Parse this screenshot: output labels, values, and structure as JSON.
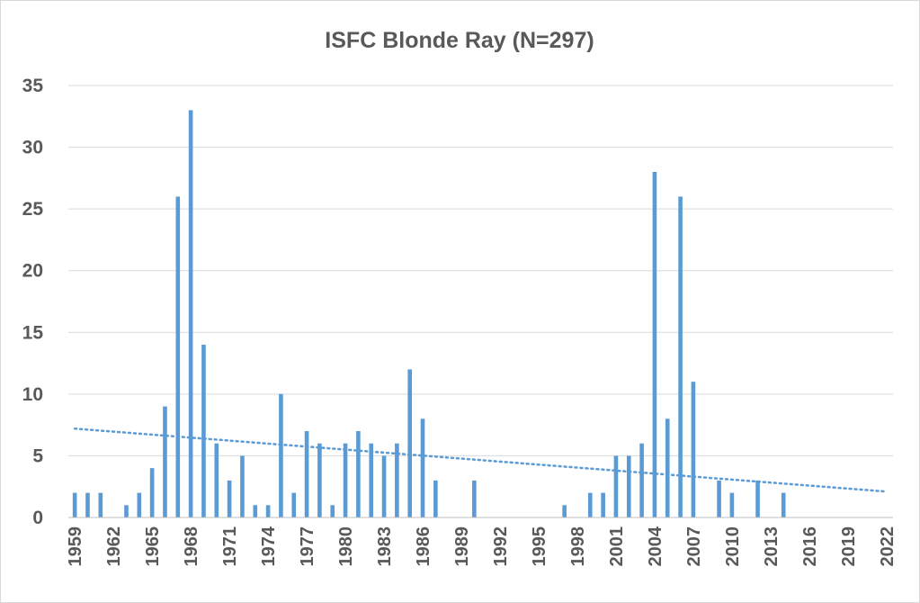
{
  "chart_data": {
    "type": "bar",
    "title": "ISFC Blonde Ray (N=297)",
    "xlabel": "",
    "ylabel": "",
    "ylim": [
      0,
      35
    ],
    "yticks": [
      0,
      5,
      10,
      15,
      20,
      25,
      30,
      35
    ],
    "xlim": [
      1959,
      2022
    ],
    "xtick_labels": [
      "1959",
      "1962",
      "1965",
      "1968",
      "1971",
      "1974",
      "1977",
      "1980",
      "1983",
      "1986",
      "1989",
      "1992",
      "1995",
      "1998",
      "2001",
      "2004",
      "2007",
      "2010",
      "2013",
      "2016",
      "2019",
      "2022"
    ],
    "grid": true,
    "legend": "none",
    "bar_color": "#5b9bd5",
    "data": [
      {
        "x": 1959,
        "y": 2
      },
      {
        "x": 1960,
        "y": 2
      },
      {
        "x": 1961,
        "y": 2
      },
      {
        "x": 1963,
        "y": 1
      },
      {
        "x": 1964,
        "y": 2
      },
      {
        "x": 1965,
        "y": 4
      },
      {
        "x": 1966,
        "y": 9
      },
      {
        "x": 1967,
        "y": 26
      },
      {
        "x": 1968,
        "y": 33
      },
      {
        "x": 1969,
        "y": 14
      },
      {
        "x": 1970,
        "y": 6
      },
      {
        "x": 1971,
        "y": 3
      },
      {
        "x": 1972,
        "y": 5
      },
      {
        "x": 1973,
        "y": 1
      },
      {
        "x": 1974,
        "y": 1
      },
      {
        "x": 1975,
        "y": 10
      },
      {
        "x": 1976,
        "y": 2
      },
      {
        "x": 1977,
        "y": 7
      },
      {
        "x": 1978,
        "y": 6
      },
      {
        "x": 1979,
        "y": 1
      },
      {
        "x": 1980,
        "y": 6
      },
      {
        "x": 1981,
        "y": 7
      },
      {
        "x": 1982,
        "y": 6
      },
      {
        "x": 1983,
        "y": 5
      },
      {
        "x": 1984,
        "y": 6
      },
      {
        "x": 1985,
        "y": 12
      },
      {
        "x": 1986,
        "y": 8
      },
      {
        "x": 1987,
        "y": 3
      },
      {
        "x": 1990,
        "y": 3
      },
      {
        "x": 1997,
        "y": 1
      },
      {
        "x": 1999,
        "y": 2
      },
      {
        "x": 2000,
        "y": 2
      },
      {
        "x": 2001,
        "y": 5
      },
      {
        "x": 2002,
        "y": 5
      },
      {
        "x": 2003,
        "y": 6
      },
      {
        "x": 2004,
        "y": 28
      },
      {
        "x": 2005,
        "y": 8
      },
      {
        "x": 2006,
        "y": 26
      },
      {
        "x": 2007,
        "y": 11
      },
      {
        "x": 2009,
        "y": 3
      },
      {
        "x": 2010,
        "y": 2
      },
      {
        "x": 2012,
        "y": 3
      },
      {
        "x": 2014,
        "y": 2
      }
    ],
    "trendline": {
      "type": "linear",
      "style": "dotted",
      "x": [
        1959,
        2022
      ],
      "y": [
        7.2,
        2.1
      ]
    }
  }
}
